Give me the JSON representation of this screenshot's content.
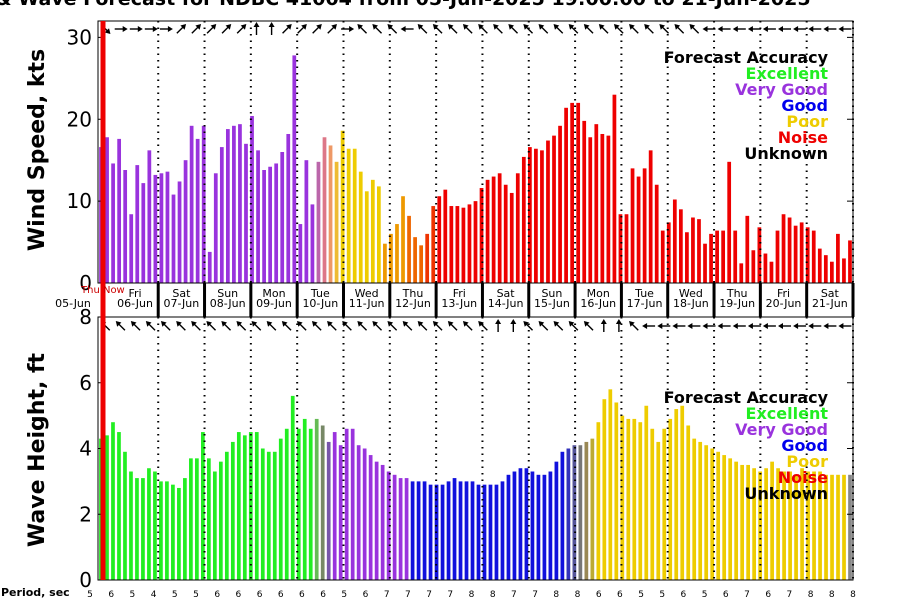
{
  "title": "& Wave Forecast for NDBC 41004 from 05-Jun-2025 19:00:00 to 21-Jun-2025",
  "legend": {
    "title": "Forecast Accuracy",
    "items": [
      {
        "label": "Excellent",
        "color": "#22ee22"
      },
      {
        "label": "Very Good",
        "color": "#9933dd"
      },
      {
        "label": "Good",
        "color": "#0000ee"
      },
      {
        "label": "Poor",
        "color": "#eecc00"
      },
      {
        "label": "Noise",
        "color": "#ee0000"
      },
      {
        "label": "Unknown",
        "color": "#000000"
      }
    ]
  },
  "now_label": "Thu Now",
  "period_label": "Period, sec",
  "day_ticks": [
    {
      "dow": "Thu",
      "date": "05-Jun"
    },
    {
      "dow": "Fri",
      "date": "06-Jun"
    },
    {
      "dow": "Sat",
      "date": "07-Jun"
    },
    {
      "dow": "Sun",
      "date": "08-Jun"
    },
    {
      "dow": "Mon",
      "date": "09-Jun"
    },
    {
      "dow": "Tue",
      "date": "10-Jun"
    },
    {
      "dow": "Wed",
      "date": "11-Jun"
    },
    {
      "dow": "Thu",
      "date": "12-Jun"
    },
    {
      "dow": "Fri",
      "date": "13-Jun"
    },
    {
      "dow": "Sat",
      "date": "14-Jun"
    },
    {
      "dow": "Sun",
      "date": "15-Jun"
    },
    {
      "dow": "Mon",
      "date": "16-Jun"
    },
    {
      "dow": "Tue",
      "date": "17-Jun"
    },
    {
      "dow": "Wed",
      "date": "18-Jun"
    },
    {
      "dow": "Thu",
      "date": "19-Jun"
    },
    {
      "dow": "Fri",
      "date": "20-Jun"
    },
    {
      "dow": "Sat",
      "date": "21-Jun"
    }
  ],
  "chart_data": [
    {
      "type": "bar",
      "ylabel": "Wind Speed, kts",
      "ylim": [
        0,
        32
      ],
      "yticks": [
        0,
        10,
        20,
        30
      ],
      "values": [
        16.6,
        17.8,
        14.6,
        17.6,
        13.8,
        8.4,
        14.4,
        12.2,
        16.2,
        13.2,
        13.4,
        13.6,
        10.8,
        12.4,
        15,
        19.2,
        17.6,
        19.2,
        3.8,
        13.4,
        16.6,
        18.8,
        19.2,
        19.4,
        17,
        20.4,
        16.2,
        13.8,
        14.2,
        14.6,
        16,
        18.2,
        27.8,
        7.2,
        15,
        9.6,
        14.8,
        17.8,
        16.8,
        14.8,
        18.6,
        16.4,
        16.4,
        13.6,
        11.2,
        12.6,
        11.8,
        4.8,
        6,
        7.2,
        10.6,
        8.2,
        5.6,
        4.6,
        6,
        9.4,
        10.6,
        11.4,
        9.4,
        9.4,
        9.2,
        9.6,
        10,
        11.6,
        12.6,
        13,
        13.4,
        12,
        11,
        13.4,
        15.4,
        16.6,
        16.4,
        16.2,
        17.4,
        18,
        19.2,
        21.4,
        22,
        22,
        19.8,
        17.8,
        19.4,
        18.2,
        18,
        23,
        8.4,
        8.4,
        14,
        13,
        14,
        16.2,
        12,
        6.4,
        7.4,
        10.2,
        9,
        6.2,
        8,
        7.8,
        4.8,
        6,
        6.4,
        6.4,
        14.8,
        6.4,
        2.4,
        8.2,
        4,
        6.8,
        3.6,
        2.6,
        6.4,
        8.4,
        8,
        7,
        7.4,
        6.8,
        6.4,
        4.2,
        3.4,
        2.6,
        6,
        3,
        5.2
      ],
      "accuracy": [
        "vg",
        "vg",
        "vg",
        "vg",
        "vg",
        "vg",
        "vg",
        "vg",
        "vg",
        "vg",
        "vg",
        "vg",
        "vg",
        "vg",
        "vg",
        "vg",
        "vg",
        "vg",
        "vg",
        "vg",
        "vg",
        "vg",
        "vg",
        "vg",
        "vg",
        "vg",
        "vg",
        "vg",
        "vg",
        "vg",
        "vg",
        "vg",
        "vg",
        "vg",
        "vg",
        "vg",
        "t1",
        "t2",
        "t3",
        "t4",
        "p",
        "p",
        "p",
        "p",
        "p",
        "p",
        "p",
        "t5",
        "t5",
        "t5",
        "t5",
        "t6",
        "t6",
        "t6",
        "t7",
        "t7",
        "n",
        "n",
        "n",
        "n",
        "n",
        "n",
        "n",
        "n",
        "n",
        "n",
        "n",
        "n",
        "n",
        "n",
        "n",
        "n",
        "n",
        "n",
        "n",
        "n",
        "n",
        "n",
        "n",
        "n",
        "n",
        "n",
        "n",
        "n",
        "n",
        "n",
        "n",
        "n",
        "n",
        "n",
        "n",
        "n",
        "n",
        "n",
        "n",
        "n",
        "n",
        "n",
        "n",
        "n",
        "n",
        "n",
        "n",
        "n",
        "n",
        "n",
        "n",
        "n",
        "n",
        "n",
        "n",
        "n",
        "n",
        "n",
        "n",
        "n",
        "n",
        "n",
        "n",
        "n",
        "n",
        "n",
        "n",
        "n",
        "n"
      ],
      "wind_dir_deg": [
        135,
        90,
        90,
        90,
        90,
        45,
        45,
        45,
        45,
        45,
        0,
        0,
        45,
        45,
        45,
        45,
        90,
        315,
        315,
        315,
        270,
        315,
        315,
        315,
        315,
        315,
        315,
        315,
        315,
        315,
        315,
        315,
        315,
        315,
        315,
        315,
        315,
        315,
        315,
        315,
        270,
        270,
        270,
        270,
        270,
        270,
        270,
        270,
        270,
        270
      ],
      "period_sec": [
        5,
        6,
        5,
        4,
        5,
        5,
        6,
        6,
        6,
        6,
        6,
        6,
        5,
        6,
        7,
        7,
        7,
        7,
        8,
        8,
        7,
        7,
        8,
        8,
        6,
        6,
        5,
        5,
        6,
        5,
        6,
        7,
        6,
        7,
        8,
        8,
        8
      ]
    },
    {
      "type": "bar",
      "ylabel": "Wave Height, ft",
      "ylim": [
        0,
        8
      ],
      "yticks": [
        0,
        2,
        4,
        6,
        8
      ],
      "values": [
        4.3,
        4.4,
        4.8,
        4.5,
        3.9,
        3.3,
        3.1,
        3.1,
        3.4,
        3.3,
        3,
        3,
        2.9,
        2.8,
        3.1,
        3.7,
        3.7,
        4.5,
        3.7,
        3.3,
        3.6,
        3.9,
        4.2,
        4.5,
        4.4,
        4.5,
        4.5,
        4,
        3.9,
        3.9,
        4.3,
        4.6,
        5.6,
        4.6,
        4.9,
        4.6,
        4.9,
        4.7,
        4.2,
        4.5,
        4.1,
        4.6,
        4.6,
        4.1,
        4,
        3.8,
        3.6,
        3.5,
        3.3,
        3.2,
        3.1,
        3.1,
        3,
        3,
        3,
        2.9,
        2.9,
        2.9,
        3,
        3.1,
        3,
        3,
        3,
        2.9,
        2.9,
        2.9,
        2.9,
        3,
        3.2,
        3.3,
        3.4,
        3.4,
        3.3,
        3.2,
        3.2,
        3.3,
        3.6,
        3.9,
        4,
        4.1,
        4.1,
        4.2,
        4.3,
        4.8,
        5.5,
        5.8,
        5.4,
        5,
        4.9,
        4.9,
        4.8,
        5.3,
        4.6,
        4.2,
        4.6,
        4.9,
        5.2,
        5.3,
        4.7,
        4.3,
        4.2,
        4.1,
        4,
        3.9,
        3.8,
        3.7,
        3.6,
        3.5,
        3.5,
        3.4,
        3.3,
        3.4,
        3.6,
        3.4,
        3.3,
        3.3,
        3.2,
        3.4,
        3.3,
        3.3,
        3.3,
        3.2,
        3.2,
        3.2,
        3.2,
        3.2
      ],
      "accuracy": [
        "e",
        "e",
        "e",
        "e",
        "e",
        "e",
        "e",
        "e",
        "e",
        "e",
        "e",
        "e",
        "e",
        "e",
        "e",
        "e",
        "e",
        "e",
        "e",
        "e",
        "e",
        "e",
        "e",
        "e",
        "e",
        "e",
        "e",
        "e",
        "e",
        "e",
        "e",
        "e",
        "e",
        "e",
        "e",
        "e",
        "u1",
        "u2",
        "u3",
        "vg",
        "vg",
        "vg",
        "vg",
        "vg",
        "vg",
        "vg",
        "vg",
        "vg",
        "vg",
        "vg",
        "vg",
        "vg",
        "g",
        "g",
        "g",
        "g",
        "g",
        "g",
        "g",
        "g",
        "g",
        "g",
        "g",
        "g",
        "g",
        "g",
        "g",
        "g",
        "g",
        "g",
        "g",
        "g",
        "g",
        "g",
        "g",
        "g",
        "g",
        "g",
        "u4",
        "u5",
        "u6",
        "u7",
        "u8",
        "p",
        "p",
        "p",
        "p",
        "p",
        "p",
        "p",
        "p",
        "p",
        "p",
        "p",
        "p",
        "p",
        "p",
        "p",
        "p",
        "p",
        "p",
        "p",
        "p",
        "p",
        "p",
        "p",
        "p",
        "p",
        "p",
        "p",
        "p",
        "p",
        "p",
        "p",
        "p",
        "p",
        "p",
        "p",
        "p",
        "p",
        "p",
        "p",
        "p",
        "p",
        "p"
      ],
      "wave_dir_deg": [
        315,
        315,
        315,
        315,
        315,
        315,
        315,
        315,
        315,
        315,
        315,
        315,
        315,
        315,
        315,
        315,
        315,
        315,
        315,
        315,
        315,
        315,
        315,
        315,
        315,
        315,
        0,
        0,
        315,
        315,
        315,
        315,
        315,
        0,
        0,
        315,
        270,
        270,
        270,
        270,
        270,
        270,
        270,
        270,
        270,
        270,
        270,
        270,
        270,
        270
      ]
    }
  ],
  "colors": {
    "vg": "#9933dd",
    "e": "#22ee22",
    "g": "#1111dd",
    "p": "#eecc00",
    "n": "#ee0000",
    "t1": "#bb66aa",
    "t2": "#dd7788",
    "t3": "#ee9966",
    "t4": "#eebb33",
    "t5": "#ee9900",
    "t6": "#ee6600",
    "t7": "#ee3300",
    "u1": "#66bb55",
    "u2": "#778866",
    "u3": "#7755aa",
    "u4": "#3333bb",
    "u5": "#555599",
    "u6": "#777777",
    "u7": "#998855",
    "u8": "#bbaa33"
  }
}
